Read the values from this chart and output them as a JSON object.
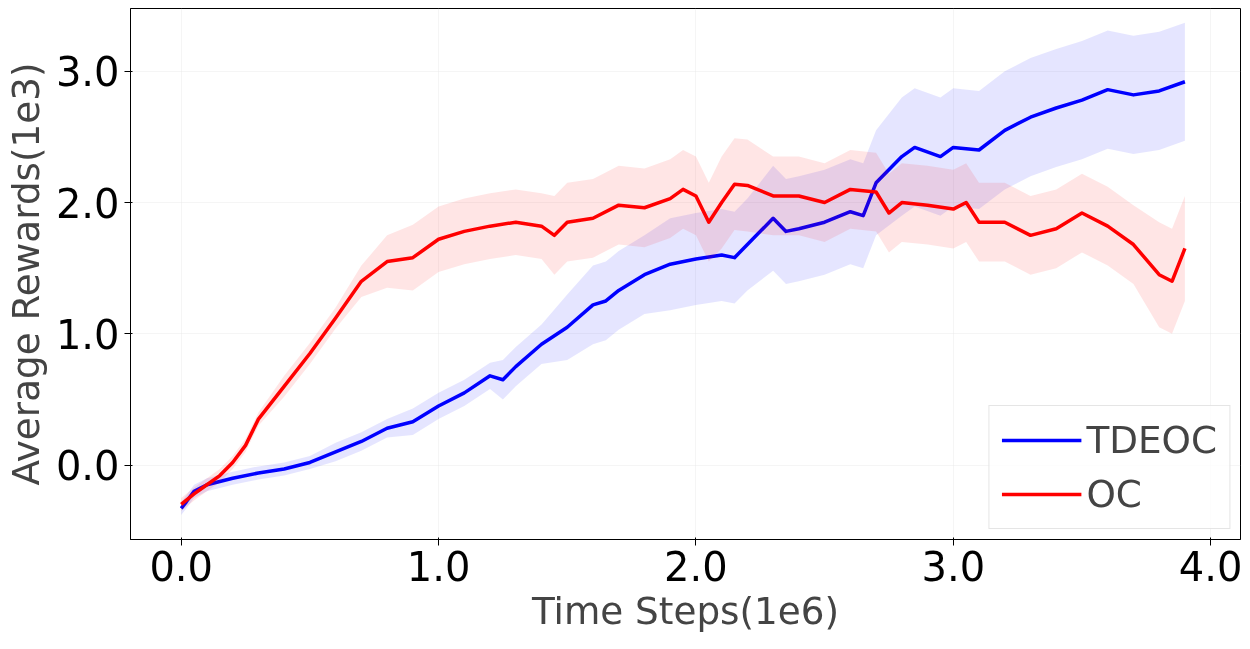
{
  "chart_data": {
    "type": "line",
    "xlabel": "Time Steps(1e6)",
    "ylabel": "Average Rewards(1e3)",
    "xlim": [
      -0.197,
      4.116
    ],
    "ylim": [
      -0.567,
      3.478
    ],
    "xticks": [
      {
        "value": 0,
        "label": "0.0"
      },
      {
        "value": 1,
        "label": "1.0"
      },
      {
        "value": 2,
        "label": "2.0"
      },
      {
        "value": 3,
        "label": "3.0"
      },
      {
        "value": 4,
        "label": "4.0"
      }
    ],
    "yticks": [
      {
        "value": 0,
        "label": "0.0"
      },
      {
        "value": 1,
        "label": "1.0"
      },
      {
        "value": 2,
        "label": "2.0"
      },
      {
        "value": 3,
        "label": "3.0"
      }
    ],
    "grid": true,
    "legend": "bottom right",
    "line_style": "solid",
    "series": [
      {
        "name": "TDEOC",
        "color": "#0000ff",
        "x": [
          0,
          0.02,
          0.05,
          0.1,
          0.2,
          0.3,
          0.4,
          0.5,
          0.6,
          0.7,
          0.8,
          0.9,
          1.0,
          1.1,
          1.2,
          1.25,
          1.3,
          1.4,
          1.5,
          1.6,
          1.65,
          1.7,
          1.8,
          1.9,
          2.0,
          2.1,
          2.15,
          2.2,
          2.3,
          2.35,
          2.4,
          2.5,
          2.6,
          2.65,
          2.7,
          2.8,
          2.85,
          2.95,
          3.0,
          3.1,
          3.2,
          3.3,
          3.4,
          3.5,
          3.6,
          3.7,
          3.8,
          3.9
        ],
        "values": [
          -0.33,
          -0.28,
          -0.2,
          -0.15,
          -0.1,
          -0.06,
          -0.03,
          0.02,
          0.1,
          0.18,
          0.28,
          0.33,
          0.45,
          0.55,
          0.68,
          0.65,
          0.75,
          0.92,
          1.05,
          1.22,
          1.25,
          1.33,
          1.45,
          1.53,
          1.57,
          1.6,
          1.58,
          1.68,
          1.88,
          1.78,
          1.8,
          1.85,
          1.93,
          1.9,
          2.15,
          2.35,
          2.42,
          2.35,
          2.42,
          2.4,
          2.55,
          2.65,
          2.72,
          2.78,
          2.86,
          2.82,
          2.85,
          2.92
        ],
        "lower": [
          -0.38,
          -0.33,
          -0.25,
          -0.2,
          -0.15,
          -0.11,
          -0.08,
          -0.03,
          0.03,
          0.11,
          0.21,
          0.23,
          0.35,
          0.45,
          0.58,
          0.5,
          0.6,
          0.77,
          0.8,
          0.92,
          0.95,
          1.03,
          1.15,
          1.18,
          1.22,
          1.25,
          1.23,
          1.33,
          1.48,
          1.38,
          1.4,
          1.45,
          1.53,
          1.5,
          1.75,
          1.9,
          1.97,
          1.9,
          1.97,
          1.95,
          2.1,
          2.2,
          2.27,
          2.33,
          2.41,
          2.37,
          2.4,
          2.47
        ],
        "upper": [
          -0.28,
          -0.23,
          -0.15,
          -0.1,
          -0.05,
          -0.01,
          0.02,
          0.07,
          0.17,
          0.25,
          0.35,
          0.43,
          0.55,
          0.65,
          0.78,
          0.8,
          0.9,
          1.07,
          1.3,
          1.52,
          1.55,
          1.63,
          1.75,
          1.88,
          1.92,
          1.95,
          1.93,
          2.03,
          2.28,
          2.18,
          2.2,
          2.25,
          2.33,
          2.3,
          2.55,
          2.8,
          2.87,
          2.8,
          2.87,
          2.85,
          3.0,
          3.1,
          3.17,
          3.23,
          3.31,
          3.27,
          3.3,
          3.37
        ]
      },
      {
        "name": "OC",
        "color": "#ff0000",
        "x": [
          0,
          0.05,
          0.1,
          0.15,
          0.2,
          0.25,
          0.3,
          0.4,
          0.5,
          0.6,
          0.7,
          0.8,
          0.9,
          1.0,
          1.1,
          1.2,
          1.3,
          1.4,
          1.45,
          1.5,
          1.6,
          1.7,
          1.8,
          1.9,
          1.95,
          2.0,
          2.05,
          2.1,
          2.15,
          2.2,
          2.3,
          2.4,
          2.5,
          2.6,
          2.7,
          2.75,
          2.8,
          2.9,
          3.0,
          3.05,
          3.1,
          3.2,
          3.3,
          3.4,
          3.5,
          3.6,
          3.7,
          3.8,
          3.85,
          3.9
        ],
        "values": [
          -0.3,
          -0.22,
          -0.15,
          -0.08,
          0.02,
          0.15,
          0.35,
          0.6,
          0.85,
          1.12,
          1.4,
          1.55,
          1.58,
          1.72,
          1.78,
          1.82,
          1.85,
          1.82,
          1.75,
          1.85,
          1.88,
          1.98,
          1.96,
          2.03,
          2.1,
          2.05,
          1.85,
          2.0,
          2.14,
          2.13,
          2.05,
          2.05,
          2.0,
          2.1,
          2.08,
          1.92,
          2.0,
          1.98,
          1.95,
          2.0,
          1.85,
          1.85,
          1.75,
          1.8,
          1.92,
          1.82,
          1.68,
          1.45,
          1.4,
          1.65
        ],
        "lower": [
          -0.35,
          -0.27,
          -0.2,
          -0.13,
          -0.03,
          0.1,
          0.3,
          0.52,
          0.77,
          1.04,
          1.28,
          1.35,
          1.33,
          1.47,
          1.53,
          1.57,
          1.6,
          1.57,
          1.45,
          1.55,
          1.58,
          1.68,
          1.66,
          1.73,
          1.8,
          1.75,
          1.55,
          1.65,
          1.79,
          1.78,
          1.75,
          1.75,
          1.7,
          1.8,
          1.78,
          1.62,
          1.7,
          1.68,
          1.65,
          1.7,
          1.55,
          1.55,
          1.45,
          1.5,
          1.62,
          1.52,
          1.38,
          1.05,
          1.0,
          1.25
        ],
        "upper": [
          -0.25,
          -0.17,
          -0.1,
          -0.03,
          0.07,
          0.2,
          0.4,
          0.68,
          0.93,
          1.2,
          1.52,
          1.75,
          1.83,
          1.97,
          2.03,
          2.07,
          2.1,
          2.07,
          2.05,
          2.15,
          2.18,
          2.28,
          2.26,
          2.33,
          2.4,
          2.35,
          2.15,
          2.35,
          2.49,
          2.48,
          2.35,
          2.35,
          2.3,
          2.4,
          2.38,
          2.22,
          2.3,
          2.28,
          2.25,
          2.3,
          2.15,
          2.15,
          2.05,
          2.1,
          2.22,
          2.12,
          1.98,
          1.85,
          1.8,
          2.05
        ]
      }
    ]
  }
}
